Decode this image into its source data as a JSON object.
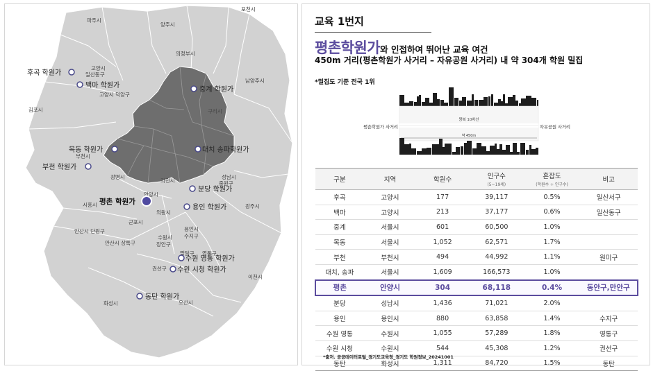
{
  "map": {
    "cities": [
      "포천시",
      "파주시",
      "양주시",
      "의정부시",
      "고양시",
      "일산동구",
      "고양시 덕양구",
      "남양주시",
      "김포시",
      "구리시",
      "부천시",
      "광명시",
      "과천시",
      "성남시",
      "중원구",
      "시흥시",
      "안양시",
      "의왕시",
      "군포시",
      "광주시",
      "안산시 단원구",
      "안산시 상록구",
      "수원시",
      "장안구",
      "용인시",
      "수지구",
      "팔달구",
      "영통구",
      "권선구",
      "화성시",
      "오산시",
      "이천시"
    ],
    "academies": [
      {
        "name": "후곡 학원가",
        "highlight": false
      },
      {
        "name": "백마 학원가",
        "highlight": false
      },
      {
        "name": "중계 학원가",
        "highlight": false
      },
      {
        "name": "목동 학원가",
        "highlight": false
      },
      {
        "name": "대치 송파학원가",
        "highlight": false
      },
      {
        "name": "부천 학원가",
        "highlight": false
      },
      {
        "name": "분당 학원가",
        "highlight": false
      },
      {
        "name": "평촌 학원가",
        "highlight": true
      },
      {
        "name": "용인 학원가",
        "highlight": false
      },
      {
        "name": "수원 영통 학원가",
        "highlight": false
      },
      {
        "name": "수원 시청 학원가",
        "highlight": false
      },
      {
        "name": "동탄 학원가",
        "highlight": false
      }
    ]
  },
  "header": {
    "title": "교육 1번지",
    "headline_main": "평촌학원가",
    "headline_rest": "와 인접하여 뛰어난 교육 여건",
    "subline": "450m 거리(평촌학원가 사거리 – 자유공원 사거리) 내 약 304개 학원 밀집",
    "note": "*밀집도 기준 전국 1위"
  },
  "diagram": {
    "road_label": "왕복 10차선",
    "left_label": "평촌학원가 사거리",
    "right_label": "자유공원 사거리",
    "distance_label": "약 450m"
  },
  "table": {
    "headers": [
      {
        "label": "구분",
        "sub": ""
      },
      {
        "label": "지역",
        "sub": ""
      },
      {
        "label": "학원수",
        "sub": ""
      },
      {
        "label": "인구수",
        "sub": "(5~19세)"
      },
      {
        "label": "혼잡도",
        "sub": "(학원수 ÷ 인구수)"
      },
      {
        "label": "비고",
        "sub": ""
      }
    ],
    "rows": [
      {
        "name": "후곡",
        "region": "고양시",
        "academies": "177",
        "population": "39,117",
        "density": "0.5%",
        "note": "일산서구",
        "highlight": false
      },
      {
        "name": "백마",
        "region": "고양시",
        "academies": "213",
        "population": "37,177",
        "density": "0.6%",
        "note": "일산동구",
        "highlight": false
      },
      {
        "name": "중계",
        "region": "서울시",
        "academies": "601",
        "population": "60,500",
        "density": "1.0%",
        "note": "",
        "highlight": false
      },
      {
        "name": "목동",
        "region": "서울시",
        "academies": "1,052",
        "population": "62,571",
        "density": "1.7%",
        "note": "",
        "highlight": false
      },
      {
        "name": "부천",
        "region": "부천시",
        "academies": "494",
        "population": "44,992",
        "density": "1.1%",
        "note": "원미구",
        "highlight": false
      },
      {
        "name": "대치, 송파",
        "region": "서울시",
        "academies": "1,609",
        "population": "166,573",
        "density": "1.0%",
        "note": "",
        "highlight": false
      },
      {
        "name": "평촌",
        "region": "안양시",
        "academies": "304",
        "population": "68,118",
        "density": "0.4%",
        "note": "동안구,만안구",
        "highlight": true
      },
      {
        "name": "분당",
        "region": "성남시",
        "academies": "1,436",
        "population": "71,021",
        "density": "2.0%",
        "note": "",
        "highlight": false
      },
      {
        "name": "용인",
        "region": "용인시",
        "academies": "880",
        "population": "63,858",
        "density": "1.4%",
        "note": "수지구",
        "highlight": false
      },
      {
        "name": "수원 영통",
        "region": "수원시",
        "academies": "1,055",
        "population": "57,289",
        "density": "1.8%",
        "note": "영통구",
        "highlight": false
      },
      {
        "name": "수원 시청",
        "region": "수원시",
        "academies": "544",
        "population": "45,308",
        "density": "1.2%",
        "note": "권선구",
        "highlight": false
      },
      {
        "name": "동탄",
        "region": "화성시",
        "academies": "1,311",
        "population": "84,720",
        "density": "1.5%",
        "note": "동탄",
        "highlight": false
      }
    ]
  },
  "source": "*출처. 공공데이터포털_경기도교육청_경기도 학원정보_20241001",
  "colors": {
    "accent": "#5b4c9e",
    "seoul": "#6e6e6e",
    "gyeonggi": "#d2d2d2"
  }
}
